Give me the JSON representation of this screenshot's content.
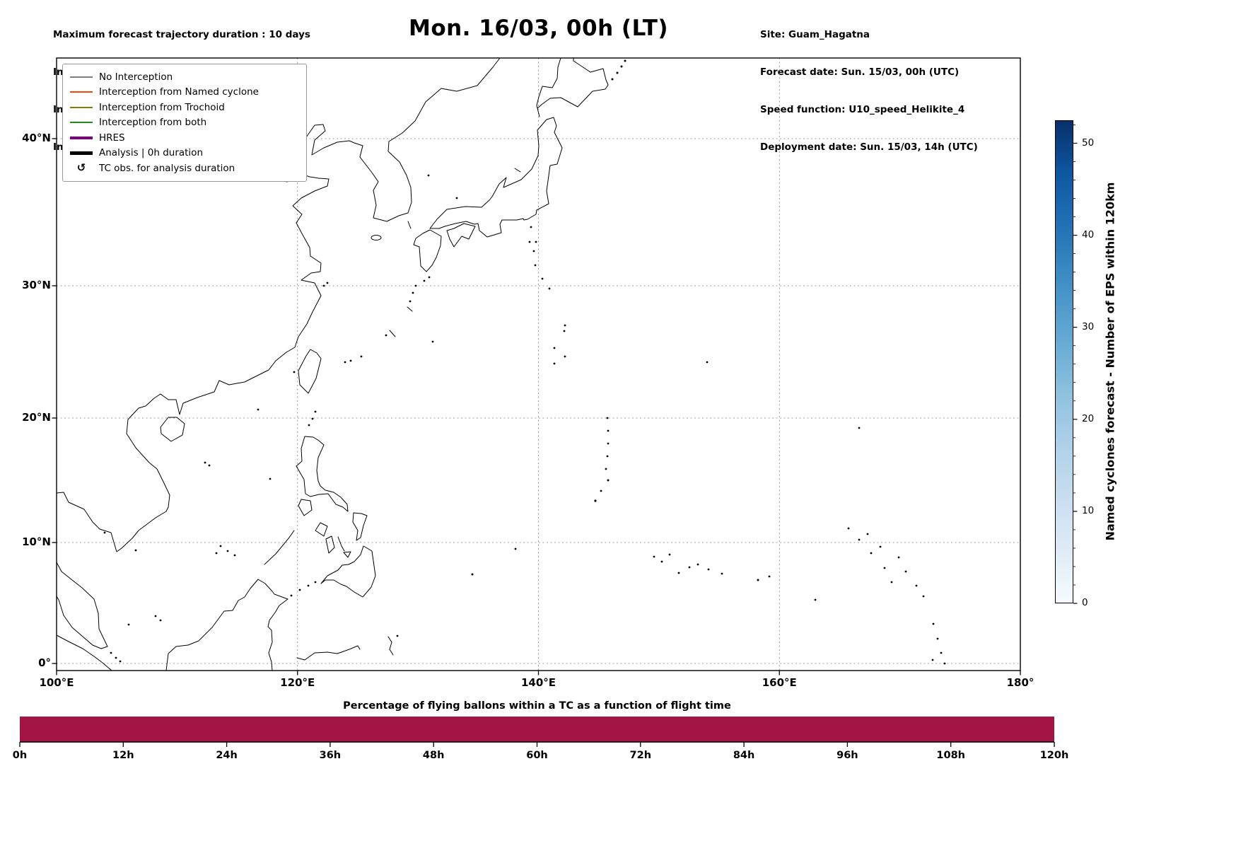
{
  "header": {
    "info_left": {
      "line1": "Maximum forecast trajectory duration : 10 days",
      "line2": "Intercept distance: 300km",
      "line3": "Intercept RW2 (EPS):  30km/h2",
      "line4": "Intercept RW2 (HRES): 30km/h2"
    },
    "title": "Mon. 16/03, 00h (LT)",
    "info_right": {
      "line1": "Site: Guam_Hagatna",
      "line2": "Forecast date: Sun. 15/03, 00h (UTC)",
      "line3": "Speed function: U10_speed_Helikite_4",
      "line4": "Deployment date: Sun. 15/03, 14h (UTC)"
    }
  },
  "map": {
    "legend": {
      "items": [
        {
          "label": "No Interception",
          "color": "#7f7f7f",
          "style": "thin"
        },
        {
          "label": "Interception from Named cyclone",
          "color": "#ff4500",
          "style": "thin"
        },
        {
          "label": "Interception from Trochoid",
          "color": "#808000",
          "style": "thin"
        },
        {
          "label": "Interception from both",
          "color": "#228b22",
          "style": "thin"
        },
        {
          "label": "HRES",
          "color": "#800080",
          "style": "thick"
        },
        {
          "label": "Analysis | 0h duration",
          "color": "#000000",
          "style": "thick"
        },
        {
          "label": "TC obs. for analysis duration",
          "symbol": "↺",
          "style": "symbol"
        }
      ]
    },
    "y_tick_labels": [
      "40°N",
      "30°N",
      "20°N",
      "10°N",
      "0°"
    ],
    "x_tick_labels": [
      "100°E",
      "120°E",
      "140°E",
      "160°E",
      "180°"
    ]
  },
  "colorbar": {
    "label": "Named cyclones forecast - Number of EPS within 120km",
    "ticks": [
      0,
      10,
      20,
      30,
      40,
      50
    ],
    "tick_labels": [
      "0",
      "10",
      "20",
      "30",
      "40",
      "50"
    ],
    "vmin": 0,
    "vmax": 52.5,
    "colormap": "Blues",
    "color_low": "#f7fbff",
    "color_high": "#08306b"
  },
  "bottom_chart": {
    "title": "Percentage of flying ballons within a TC as a function of flight time",
    "x_tick_labels": [
      "0h",
      "12h",
      "24h",
      "36h",
      "48h",
      "60h",
      "72h",
      "84h",
      "96h",
      "108h",
      "120h"
    ],
    "bar_color": "#a31545"
  },
  "chart_data": [
    {
      "type": "map",
      "title": "Mon. 16/03, 00h (LT)",
      "projection": "mercator",
      "lon_range_deg_east": [
        100,
        180
      ],
      "lat_range_deg_north": [
        0,
        45
      ],
      "x_ticks": [
        "100°E",
        "120°E",
        "140°E",
        "160°E",
        "180°"
      ],
      "y_ticks": [
        "0°",
        "10°N",
        "20°N",
        "30°N",
        "40°N"
      ],
      "grid": "dashed",
      "legend_position": "upper left",
      "legend_entries": [
        "No Interception",
        "Interception from Named cyclone",
        "Interception from Trochoid",
        "Interception from both",
        "HRES",
        "Analysis | 0h duration",
        "TC obs. for analysis duration"
      ],
      "visible_trajectories": 0,
      "region": "Western North Pacific and East Asia coastlines",
      "colorbar": {
        "label": "Named cyclones forecast - Number of EPS within 120km",
        "ticks": [
          0,
          10,
          20,
          30,
          40,
          50
        ],
        "range": [
          0,
          52.5
        ],
        "colormap": "Blues"
      }
    },
    {
      "type": "bar",
      "title": "Percentage of flying ballons within a TC as a function of flight time",
      "x": [
        "0h",
        "12h",
        "24h",
        "36h",
        "48h",
        "60h",
        "72h",
        "84h",
        "96h",
        "108h",
        "120h"
      ],
      "x_range_hours": [
        0,
        120
      ],
      "values_percent": [
        100,
        100,
        100,
        100,
        100,
        100,
        100,
        100,
        100,
        100,
        100
      ],
      "note": "single uniform full-height bar spanning the whole 0h-120h axis",
      "bar_color": "#a31545"
    }
  ]
}
